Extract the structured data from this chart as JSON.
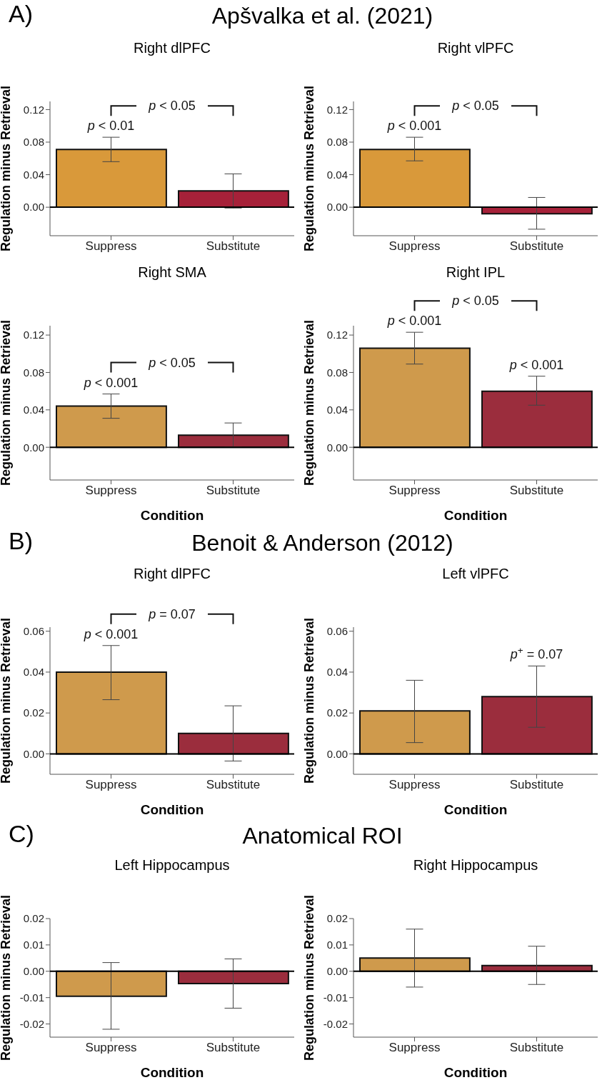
{
  "chart_data": [
    {
      "type": "other",
      "title": "Apšvalka et al. (2021)",
      "annotations": [
        "A)"
      ]
    },
    {
      "type": "bar",
      "title": "Right dlPFC",
      "ylabel": "Regulation minus Retrieval",
      "categories": [
        "Suppress",
        "Substitute"
      ],
      "values": [
        0.071,
        0.02
      ],
      "colors": [
        "#d9993a",
        "#a62139"
      ],
      "errors": [
        [
          0.056,
          0.086
        ],
        [
          -0.001,
          0.041
        ]
      ],
      "ylim": [
        -0.035,
        0.13
      ],
      "yticks": [
        {
          "value": 0,
          "label": "0.00"
        },
        {
          "value": 0.04,
          "label": "0.04"
        },
        {
          "value": 0.08,
          "label": "0.08"
        },
        {
          "value": 0.12,
          "label": "0.12"
        }
      ],
      "ref_lines": [
        {
          "axis": "y",
          "value": 0,
          "color": "#000000"
        }
      ],
      "grid": false,
      "annotations": [
        {
          "text": "p < 0.01",
          "x": "Suppress",
          "y": 0.086
        },
        "p < 0.05"
      ]
    },
    {
      "type": "bar",
      "title": "Right vlPFC",
      "ylabel": "Regulation minus Retrieval",
      "categories": [
        "Suppress",
        "Substitute"
      ],
      "values": [
        0.071,
        -0.008
      ],
      "colors": [
        "#d9993a",
        "#a62139"
      ],
      "errors": [
        [
          0.057,
          0.086
        ],
        [
          -0.027,
          0.012
        ]
      ],
      "ylim": [
        -0.035,
        0.13
      ],
      "yticks": [
        {
          "value": 0,
          "label": "0.00"
        },
        {
          "value": 0.04,
          "label": "0.04"
        },
        {
          "value": 0.08,
          "label": "0.08"
        },
        {
          "value": 0.12,
          "label": "0.12"
        }
      ],
      "ref_lines": [
        {
          "axis": "y",
          "value": 0,
          "color": "#000000"
        }
      ],
      "grid": false,
      "annotations": [
        {
          "text": "p < 0.001",
          "x": "Suppress",
          "y": 0.086
        },
        "p < 0.05"
      ]
    },
    {
      "type": "bar",
      "title": "Right SMA",
      "xlabel": "Condition",
      "ylabel": "Regulation minus Retrieval",
      "categories": [
        "Suppress",
        "Substitute"
      ],
      "values": [
        0.044,
        0.013
      ],
      "colors": [
        "#cf9a4c",
        "#9b2d3d"
      ],
      "errors": [
        [
          0.031,
          0.057
        ],
        [
          0.0,
          0.026
        ]
      ],
      "ylim": [
        -0.035,
        0.13
      ],
      "yticks": [
        {
          "value": 0,
          "label": "0.00"
        },
        {
          "value": 0.04,
          "label": "0.04"
        },
        {
          "value": 0.08,
          "label": "0.08"
        },
        {
          "value": 0.12,
          "label": "0.12"
        }
      ],
      "ref_lines": [
        {
          "axis": "y",
          "value": 0,
          "color": "#000000"
        }
      ],
      "grid": false,
      "annotations": [
        {
          "text": "p < 0.001",
          "x": "Suppress",
          "y": 0.057
        },
        "p < 0.05"
      ]
    },
    {
      "type": "bar",
      "title": "Right IPL",
      "xlabel": "Condition",
      "ylabel": "Regulation minus Retrieval",
      "categories": [
        "Suppress",
        "Substitute"
      ],
      "values": [
        0.106,
        0.06
      ],
      "colors": [
        "#cf9a4c",
        "#9b2d3d"
      ],
      "errors": [
        [
          0.089,
          0.123
        ],
        [
          0.045,
          0.076
        ]
      ],
      "ylim": [
        -0.035,
        0.13
      ],
      "yticks": [
        {
          "value": 0,
          "label": "0.00"
        },
        {
          "value": 0.04,
          "label": "0.04"
        },
        {
          "value": 0.08,
          "label": "0.08"
        },
        {
          "value": 0.12,
          "label": "0.12"
        }
      ],
      "ref_lines": [
        {
          "axis": "y",
          "value": 0,
          "color": "#000000"
        }
      ],
      "grid": false,
      "annotations": [
        {
          "text": "p < 0.001",
          "x": "Suppress",
          "y": 0.123
        },
        {
          "text": "p < 0.001",
          "x": "Substitute",
          "y": 0.076
        },
        "p < 0.05"
      ]
    },
    {
      "type": "other",
      "title": "Benoit & Anderson (2012)",
      "annotations": [
        "B)"
      ]
    },
    {
      "type": "bar",
      "title": "Right dlPFC",
      "xlabel": "Condition",
      "ylabel": "Regulation minus Retrieval",
      "categories": [
        "Suppress",
        "Substitute"
      ],
      "values": [
        0.04,
        0.01
      ],
      "colors": [
        "#cf9a4c",
        "#9b2d3d"
      ],
      "errors": [
        [
          0.0265,
          0.053
        ],
        [
          -0.0035,
          0.0235
        ]
      ],
      "ylim": [
        -0.01,
        0.062
      ],
      "yticks": [
        {
          "value": 0,
          "label": "0.00"
        },
        {
          "value": 0.02,
          "label": "0.02"
        },
        {
          "value": 0.04,
          "label": "0.04"
        },
        {
          "value": 0.06,
          "label": "0.06"
        }
      ],
      "ref_lines": [
        {
          "axis": "y",
          "value": 0,
          "color": "#000000"
        }
      ],
      "grid": false,
      "annotations": [
        {
          "text": "p < 0.001",
          "x": "Suppress",
          "y": 0.053
        },
        "p = 0.07"
      ]
    },
    {
      "type": "bar",
      "title": "Left  vlPFC",
      "xlabel": "Condition",
      "ylabel": "Regulation minus Retrieval",
      "categories": [
        "Suppress",
        "Substitute"
      ],
      "values": [
        0.021,
        0.028
      ],
      "colors": [
        "#cf9a4c",
        "#9b2d3d"
      ],
      "errors": [
        [
          0.0055,
          0.036
        ],
        [
          0.013,
          0.043
        ]
      ],
      "ylim": [
        -0.01,
        0.062
      ],
      "yticks": [
        {
          "value": 0,
          "label": "0.00"
        },
        {
          "value": 0.02,
          "label": "0.02"
        },
        {
          "value": 0.04,
          "label": "0.04"
        },
        {
          "value": 0.06,
          "label": "0.06"
        }
      ],
      "ref_lines": [
        {
          "axis": "y",
          "value": 0,
          "color": "#000000"
        }
      ],
      "grid": false,
      "annotations": [
        {
          "text": "p$^{+}$ = 0.07",
          "x": "Substitute",
          "y": 0.043
        }
      ]
    },
    {
      "type": "other",
      "title": "Anatomical ROI",
      "annotations": [
        "C)"
      ]
    },
    {
      "type": "bar",
      "title": "Left Hippocampus",
      "xlabel": "Condition",
      "ylabel": "Regulation minus Retrieval",
      "categories": [
        "Suppress",
        "Substitute"
      ],
      "values": [
        -0.0095,
        -0.0047
      ],
      "colors": [
        "#cf9a4c",
        "#9b2d3d"
      ],
      "errors": [
        [
          -0.022,
          0.0033
        ],
        [
          -0.014,
          0.0047
        ]
      ],
      "ylim": [
        -0.025,
        0.02
      ],
      "yticks": [
        {
          "value": -0.02,
          "label": "-0.02"
        },
        {
          "value": -0.01,
          "label": "-0.01"
        },
        {
          "value": 0,
          "label": "0.00"
        },
        {
          "value": 0.01,
          "label": "0.01"
        },
        {
          "value": 0.02,
          "label": "0.02"
        }
      ],
      "ref_lines": [
        {
          "axis": "y",
          "value": 0,
          "color": "#000000"
        }
      ],
      "grid": false
    },
    {
      "type": "bar",
      "title": "Right Hippocampus",
      "xlabel": "Condition",
      "ylabel": "Regulation minus Retrieval",
      "categories": [
        "Suppress",
        "Substitute"
      ],
      "values": [
        0.005,
        0.0022
      ],
      "colors": [
        "#cf9a4c",
        "#9b2d3d"
      ],
      "errors": [
        [
          -0.006,
          0.016
        ],
        [
          -0.005,
          0.0095
        ]
      ],
      "ylim": [
        -0.025,
        0.02
      ],
      "yticks": [
        {
          "value": -0.02,
          "label": "-0.02"
        },
        {
          "value": -0.01,
          "label": "-0.01"
        },
        {
          "value": 0,
          "label": "0.00"
        },
        {
          "value": 0.01,
          "label": "0.01"
        },
        {
          "value": 0.02,
          "label": "0.02"
        }
      ],
      "ref_lines": [
        {
          "axis": "y",
          "value": 0,
          "color": "#000000"
        }
      ],
      "grid": false
    }
  ]
}
